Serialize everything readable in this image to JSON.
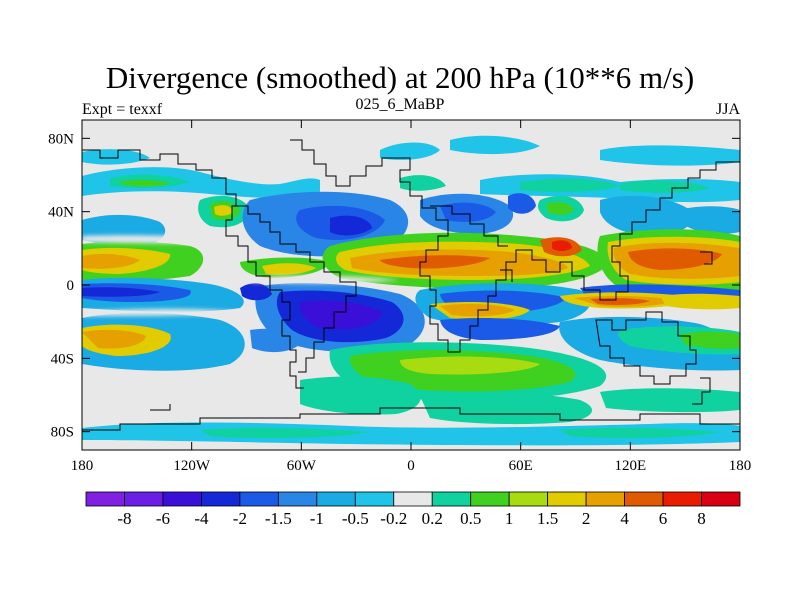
{
  "chart_data": {
    "type": "heatmap",
    "title": "Divergence (smoothed) at 200 hPa (10**6 m/s)",
    "subtitle_left": "Expt = texxf",
    "subtitle_center": "025_6_MaBP",
    "subtitle_right": "JJA",
    "x_ticks": [
      "180",
      "120W",
      "60W",
      "0",
      "60E",
      "120E",
      "180"
    ],
    "x_tick_values": [
      -180,
      -120,
      -60,
      0,
      60,
      120,
      180
    ],
    "y_ticks": [
      "80N",
      "40N",
      "0",
      "40S",
      "80S"
    ],
    "y_tick_values": [
      80,
      40,
      0,
      -40,
      -80
    ],
    "xlim": [
      -180,
      180
    ],
    "ylim": [
      -90,
      90
    ],
    "contour_levels": [
      "-8",
      "-6",
      "-4",
      "-2",
      "-1.5",
      "-1",
      "-0.5",
      "-0.2",
      "0.2",
      "0.5",
      "1",
      "1.5",
      "2",
      "4",
      "6",
      "8"
    ],
    "level_values": [
      -8,
      -6,
      -4,
      -2,
      -1.5,
      -1,
      -0.5,
      -0.2,
      0.2,
      0.5,
      1,
      1.5,
      2,
      4,
      6,
      8
    ],
    "colors": [
      "#8020e0",
      "#6a1ee6",
      "#3a10d8",
      "#1428d8",
      "#1a5ae6",
      "#2a86e6",
      "#1aaae4",
      "#20c4e8",
      "#e8e8e8",
      "#10d2a0",
      "#40d020",
      "#a8dc10",
      "#e0cc00",
      "#e6a000",
      "#e05a00",
      "#e81c00",
      "#d80010"
    ],
    "neutral_color": "#e8e8e8"
  }
}
